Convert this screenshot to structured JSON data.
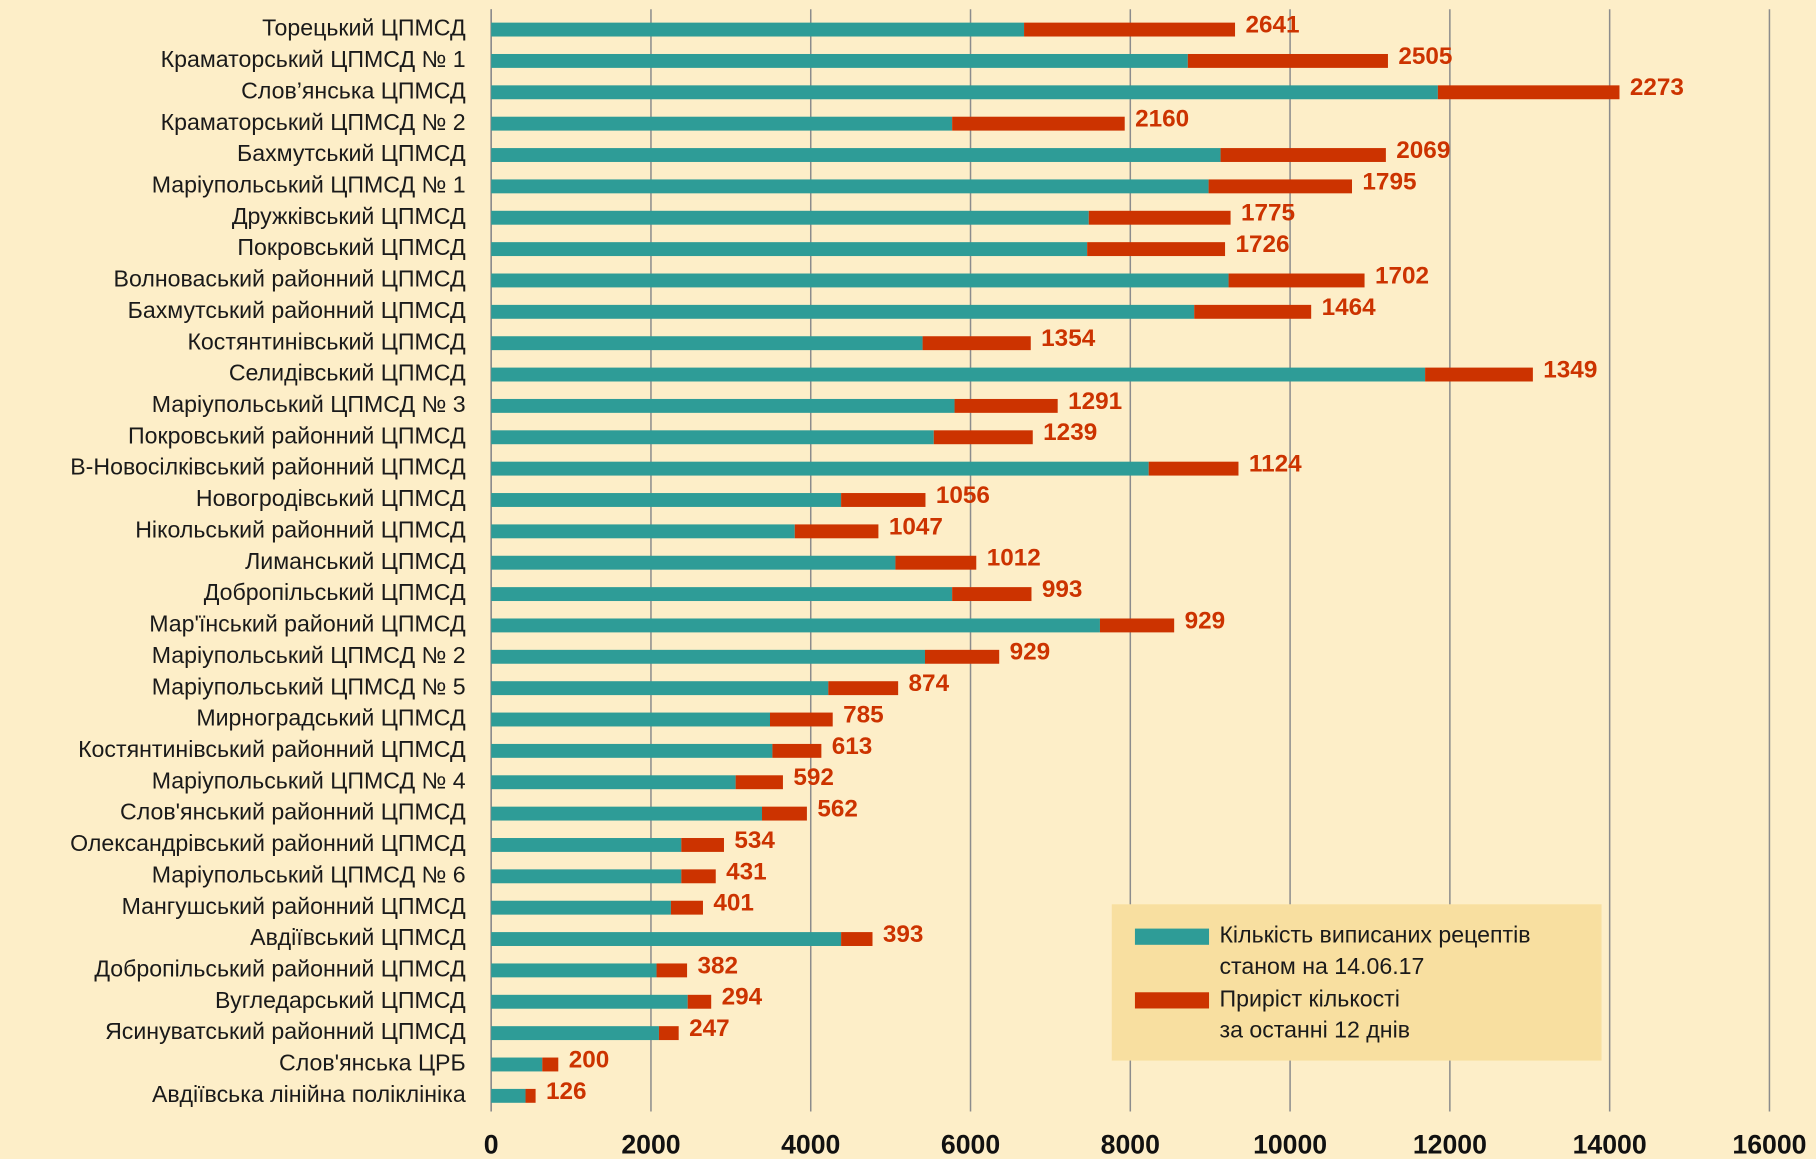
{
  "chart_data": {
    "type": "stacked-bar-horizontal",
    "categories": [
      "Торецький ЦПМСД",
      "Краматорський ЦПМСД № 1",
      "Слов’янська ЦПМСД",
      "Краматорський ЦПМСД № 2",
      "Бахмутський ЦПМСД",
      "Маріупольський ЦПМСД № 1",
      "Дружківський ЦПМСД",
      "Покровський ЦПМСД",
      "Волноваський районний ЦПМСД",
      "Бахмутський районний ЦПМСД",
      "Костянтинівський  ЦПМСД",
      "Селидівський ЦПМСД",
      "Маріупольський ЦПМСД № 3",
      "Покровський районний ЦПМСД",
      "В-Новосілківський районний ЦПМСД",
      "Новогродівський ЦПМСД",
      "Нікольський районний ЦПМСД",
      "Лиманський ЦПМСД",
      "Добропільський ЦПМСД",
      "Мар'їнський районий ЦПМСД",
      "Маріупольський ЦПМСД № 2",
      "Маріупольський ЦПМСД № 5",
      "Мирноградський ЦПМСД",
      "Костянтинівський районний ЦПМСД",
      "Маріупольський ЦПМСД № 4",
      "Слов'янський районний ЦПМСД",
      "Олександрівський районний ЦПМСД",
      "Маріупольський ЦПМСД № 6",
      "Мангушський районний ЦПМСД",
      "Авдіївський ЦПМСД",
      "Добропільський районний ЦПМСД",
      "Вугледарський ЦПМСД",
      "Ясинуватський районний ЦПМСД",
      "Слов'янська ЦРБ",
      "Авдіївська лінійна поліклініка"
    ],
    "series": [
      {
        "name": "Кількість виписаних рецептів станом на 14.06.17",
        "color": "#2e9c97",
        "values": [
          6670,
          8720,
          11850,
          5770,
          9130,
          8980,
          7480,
          7460,
          9230,
          8800,
          5400,
          11690,
          5800,
          5540,
          8230,
          4380,
          3800,
          5060,
          5770,
          7620,
          5430,
          4220,
          3490,
          3520,
          3060,
          3390,
          2380,
          2380,
          2250,
          4380,
          2070,
          2460,
          2100,
          640,
          430
        ]
      },
      {
        "name": "Приріст кількості за останні 12 днів",
        "color": "#cc3300",
        "values": [
          2641,
          2505,
          2273,
          2160,
          2069,
          1795,
          1775,
          1726,
          1702,
          1464,
          1354,
          1349,
          1291,
          1239,
          1124,
          1056,
          1047,
          1012,
          993,
          929,
          929,
          874,
          785,
          613,
          592,
          562,
          534,
          431,
          401,
          393,
          382,
          294,
          247,
          200,
          126
        ]
      }
    ],
    "xlim": [
      0,
      16000
    ],
    "xticks": [
      0,
      2000,
      4000,
      6000,
      8000,
      10000,
      12000,
      14000,
      16000
    ],
    "grid": true,
    "legend": "lower right"
  }
}
